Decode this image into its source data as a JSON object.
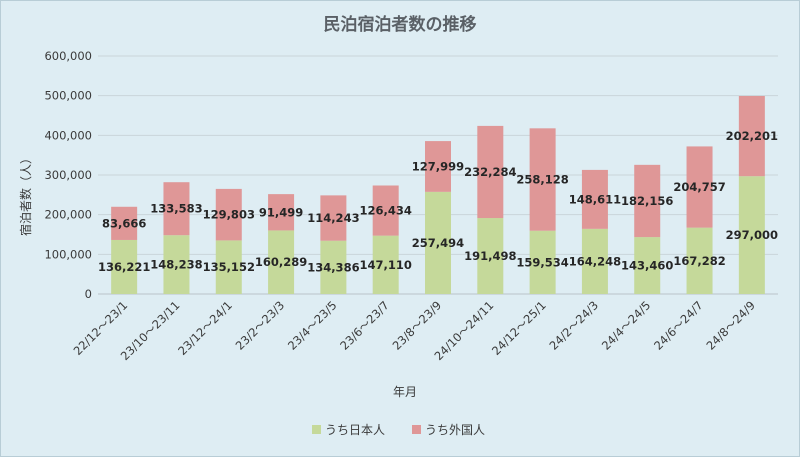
{
  "chart_data": {
    "type": "bar",
    "stacked": true,
    "title": "民泊宿泊者数の推移",
    "xlabel": "年月",
    "ylabel": "宿泊者数（人）",
    "ylim": [
      0,
      600000
    ],
    "yticks": [
      0,
      100000,
      200000,
      300000,
      400000,
      500000,
      600000
    ],
    "ytick_labels": [
      "0",
      "100,000",
      "200,000",
      "300,000",
      "400,000",
      "500,000",
      "600,000"
    ],
    "grid": true,
    "legend_position": "bottom",
    "categories": [
      "22/12～23/1",
      "23/10～23/11",
      "23/12～24/1",
      "23/2～23/3",
      "23/4～23/5",
      "23/6～23/7",
      "23/8～23/9",
      "24/10～24/11",
      "24/12～25/1",
      "24/2～24/3",
      "24/4～24/5",
      "24/6～24/7",
      "24/8～24/9"
    ],
    "series": [
      {
        "name": "うち日本人",
        "color": "#c5d99a",
        "values": [
          136221,
          148238,
          135152,
          160289,
          134386,
          147110,
          257494,
          191498,
          159534,
          164248,
          143460,
          167282,
          297000
        ],
        "labels": [
          "136,221",
          "148,238",
          "135,152",
          "160,289",
          "134,386",
          "147,110",
          "257,494",
          "191,498",
          "159,534",
          "164,248",
          "143,460",
          "167,282",
          "297,000"
        ]
      },
      {
        "name": "うち外国人",
        "color": "#df9797",
        "values": [
          83666,
          133583,
          129803,
          91499,
          114243,
          126434,
          127999,
          232284,
          258128,
          148611,
          182156,
          204757,
          202201
        ],
        "labels": [
          "83,666",
          "133,583",
          "129,803",
          "91,499",
          "114,243",
          "126,434",
          "127,999",
          "232,284",
          "258,128",
          "148,611",
          "182,156",
          "204,757",
          "202,201"
        ]
      }
    ]
  }
}
